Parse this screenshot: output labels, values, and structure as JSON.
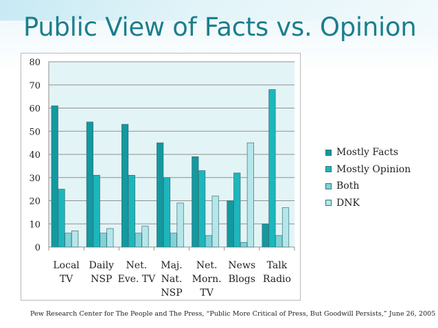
{
  "title": "Public View of Facts vs. Opinion",
  "source": "Pew Research Center for The People and The Press, “Public More Critical of Press, But Goodwill Persists,” June 26, 2005",
  "chart_data": {
    "type": "bar",
    "categories": [
      [
        "Local",
        "TV"
      ],
      [
        "Daily",
        "NSP"
      ],
      [
        "Net.",
        "Eve. TV"
      ],
      [
        "Maj.",
        "Nat.",
        "NSP"
      ],
      [
        "Net.",
        "Morn.",
        "TV"
      ],
      [
        "News",
        "Blogs"
      ],
      [
        "Talk",
        "Radio"
      ]
    ],
    "series": [
      {
        "name": "Mostly Facts",
        "color": "#13999f",
        "values": [
          61,
          54,
          53,
          45,
          39,
          20,
          10
        ]
      },
      {
        "name": "Mostly Opinion",
        "color": "#1cb6bd",
        "values": [
          25,
          31,
          31,
          30,
          33,
          32,
          68
        ]
      },
      {
        "name": "Both",
        "color": "#7fd3d8",
        "values": [
          6,
          6,
          6,
          6,
          5,
          2,
          5
        ]
      },
      {
        "name": "DNK",
        "color": "#b5e6ea",
        "values": [
          7,
          8,
          9,
          19,
          22,
          45,
          17
        ]
      }
    ],
    "ylim": [
      0,
      80
    ],
    "yticks": [
      0,
      10,
      20,
      30,
      40,
      50,
      60,
      70,
      80
    ],
    "grid": true,
    "legend_position": "right"
  }
}
